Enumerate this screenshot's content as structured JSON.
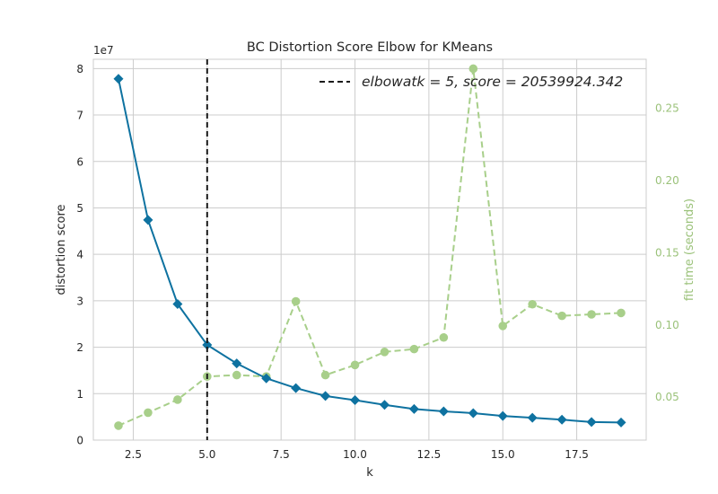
{
  "chart_data": {
    "type": "line",
    "title": "BC Distortion Score Elbow for KMeans",
    "xlabel": "k",
    "ylabel": "distortion score",
    "y_offset_label": "1e7",
    "y2label": "fit time (seconds)",
    "xlim": [
      1.15,
      19.85
    ],
    "ylim": [
      0,
      8.2
    ],
    "y2lim": [
      0.02,
      0.2835
    ],
    "x_ticks": [
      2.5,
      5.0,
      7.5,
      10.0,
      12.5,
      15.0,
      17.5
    ],
    "x_tick_labels": [
      "2.5",
      "5.0",
      "7.5",
      "10.0",
      "12.5",
      "15.0",
      "17.5"
    ],
    "y_ticks": [
      0,
      1,
      2,
      3,
      4,
      5,
      6,
      7,
      8
    ],
    "y_tick_labels": [
      "0",
      "1",
      "2",
      "3",
      "4",
      "5",
      "6",
      "7",
      "8"
    ],
    "y2_ticks": [
      0.05,
      0.1,
      0.15,
      0.2,
      0.25
    ],
    "y2_tick_labels": [
      "0.05",
      "0.10",
      "0.15",
      "0.20",
      "0.25"
    ],
    "grid": true,
    "legend_position": "top-right",
    "legend_label": "$elbow at k = 5, score = 20539924.342$",
    "legend_text_display": "elbowatk = 5, score = 20539924.342",
    "elbow_k": 5,
    "x": [
      2,
      3,
      4,
      5,
      6,
      7,
      8,
      9,
      10,
      11,
      12,
      13,
      14,
      15,
      16,
      17,
      18,
      19
    ],
    "series": [
      {
        "axis": "left",
        "unit": "1e7",
        "color": "#0e72a0",
        "marker": "diamond",
        "values": [
          7.78,
          4.74,
          2.93,
          2.05,
          1.65,
          1.33,
          1.12,
          0.95,
          0.86,
          0.76,
          0.67,
          0.62,
          0.58,
          0.52,
          0.48,
          0.44,
          0.39,
          0.38
        ]
      },
      {
        "axis": "right",
        "color": "#a8cf8a",
        "marker": "circle",
        "linestyle": "dashed",
        "values": [
          0.03,
          0.039,
          0.048,
          0.064,
          0.065,
          0.064,
          0.116,
          0.065,
          0.072,
          0.081,
          0.083,
          0.091,
          0.277,
          0.099,
          0.114,
          0.106,
          0.107,
          0.108
        ]
      }
    ]
  }
}
